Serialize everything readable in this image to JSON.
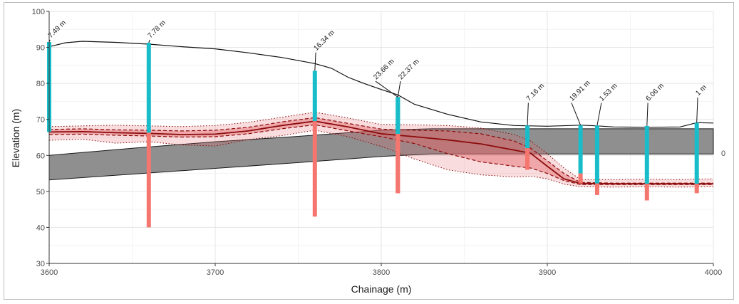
{
  "chart_data": {
    "type": "line",
    "xlabel": "Chainage (m)",
    "ylabel": "Elevation (m)",
    "xlim": [
      3600,
      4000
    ],
    "ylim": [
      30,
      100
    ],
    "xticks": [
      3600,
      3700,
      3800,
      3900,
      4000
    ],
    "yticks": [
      30,
      40,
      50,
      60,
      70,
      80,
      90,
      100
    ],
    "grid": true,
    "edge_label": "0",
    "ground_surface": {
      "x": [
        3600,
        3610,
        3620,
        3640,
        3660,
        3680,
        3700,
        3720,
        3740,
        3760,
        3770,
        3780,
        3790,
        3800,
        3810,
        3820,
        3840,
        3860,
        3880,
        3900,
        3920,
        3930,
        3940,
        3960,
        3980,
        3990,
        4000
      ],
      "y": [
        90.2,
        91.3,
        91.7,
        91.4,
        90.9,
        90.2,
        89.6,
        88.5,
        87.2,
        85.5,
        84.2,
        81.7,
        79.9,
        78.3,
        76.8,
        74.2,
        71.4,
        69.3,
        68.3,
        68.1,
        68.4,
        68.2,
        67.9,
        67.8,
        67.9,
        69.1,
        69.0
      ]
    },
    "grey_band": {
      "x": [
        3600,
        3650,
        3700,
        3750,
        3800,
        3830,
        4000
      ],
      "top": [
        60.0,
        62.0,
        63.8,
        65.3,
        67.0,
        67.4,
        67.4
      ],
      "bottom": [
        53.2,
        54.8,
        56.4,
        58.0,
        59.7,
        60.4,
        60.4
      ]
    },
    "series": [
      {
        "x": [
          3600,
          3620,
          3640,
          3660,
          3680,
          3700,
          3720,
          3740,
          3760,
          3780,
          3800,
          3820,
          3840,
          3860,
          3880,
          3890,
          3900,
          3910,
          3920,
          3940,
          3960,
          3980,
          4000
        ],
        "y": [
          66.5,
          66.6,
          66.3,
          66.1,
          65.8,
          65.9,
          66.8,
          68.3,
          69.5,
          67.9,
          66.0,
          65.2,
          64.3,
          63.2,
          61.5,
          60.6,
          57.0,
          53.5,
          52.2,
          52.1,
          52.1,
          52.1,
          52.1
        ]
      },
      {
        "x": [
          3600,
          3620,
          3640,
          3660,
          3680,
          3700,
          3720,
          3740,
          3760,
          3780,
          3800,
          3820,
          3840,
          3860,
          3880,
          3890,
          3900,
          3910,
          3920,
          3940,
          3960,
          3980,
          4000
        ],
        "y": [
          67.2,
          67.4,
          67.1,
          67.0,
          66.8,
          67.0,
          67.8,
          69.3,
          70.5,
          68.9,
          67.3,
          67.0,
          66.8,
          66.0,
          64.0,
          62.0,
          58.5,
          55.0,
          52.5,
          52.3,
          52.3,
          52.3,
          52.3
        ]
      },
      {
        "x": [
          3600,
          3620,
          3640,
          3660,
          3680,
          3700,
          3720,
          3740,
          3760,
          3780,
          3800,
          3820,
          3840,
          3860,
          3880,
          3890,
          3900,
          3910,
          3920,
          3940,
          3960,
          3980,
          4000
        ],
        "y": [
          65.8,
          65.9,
          65.6,
          65.4,
          65.1,
          65.2,
          66.0,
          67.4,
          68.5,
          66.8,
          65.2,
          63.3,
          60.5,
          58.2,
          57.0,
          56.5,
          55.0,
          53.0,
          51.9,
          51.9,
          51.9,
          51.9,
          51.9
        ]
      },
      {
        "x": [
          3600,
          3620,
          3640,
          3660,
          3680,
          3700,
          3720,
          3740,
          3760,
          3780,
          3800,
          3820,
          3840,
          3860,
          3880,
          3890,
          3900,
          3910,
          3920,
          3940,
          3960,
          3980,
          4000
        ],
        "y": [
          68.0,
          68.2,
          68.4,
          68.2,
          68.0,
          68.3,
          69.2,
          70.6,
          72.0,
          70.4,
          68.6,
          68.5,
          68.3,
          67.6,
          65.8,
          64.0,
          60.5,
          56.5,
          53.3,
          53.3,
          53.4,
          53.3,
          53.5
        ]
      },
      {
        "x": [
          3600,
          3620,
          3640,
          3660,
          3680,
          3700,
          3720,
          3740,
          3760,
          3780,
          3800,
          3820,
          3840,
          3860,
          3880,
          3890,
          3900,
          3910,
          3920,
          3940,
          3960,
          3980,
          4000
        ],
        "y": [
          64.2,
          64.5,
          63.4,
          63.8,
          62.9,
          62.6,
          64.4,
          65.5,
          67.0,
          65.2,
          62.5,
          59.0,
          56.0,
          54.6,
          54.0,
          54.2,
          53.5,
          52.0,
          51.3,
          51.2,
          51.3,
          51.2,
          51.3
        ]
      }
    ],
    "borehole_labels": [
      "7.49 m",
      "7.78 m",
      "16.34 m",
      "23.66 m",
      "22.37 m",
      "7.16 m",
      "19.91 m",
      "1.53 m",
      "6.06 m",
      "1 m"
    ],
    "boreholes": [
      {
        "x": 3600,
        "top": 91.5,
        "interface": 66.5,
        "bottom": 66.5,
        "label_x": 3601,
        "label_y": 92.5
      },
      {
        "x": 3660,
        "top": 91.3,
        "interface": 66.3,
        "bottom": 40.0,
        "label_x": 3661,
        "label_y": 92.5
      },
      {
        "x": 3760,
        "top": 83.5,
        "interface": 69.5,
        "bottom": 43.0,
        "label_x": 3761,
        "label_y": 89.0
      },
      {
        "x": 3810,
        "top": 76.2,
        "interface": 66.0,
        "bottom": 49.5,
        "label_x": 3797,
        "label_y": 81.0
      },
      {
        "x": 3810,
        "top": 76.2,
        "interface": 66.0,
        "bottom": 49.5,
        "label_x": 3812,
        "label_y": 81.0
      },
      {
        "x": 3888,
        "top": 68.3,
        "interface": 62.0,
        "bottom": 56.0,
        "label_x": 3889,
        "label_y": 75.0
      },
      {
        "x": 3920,
        "top": 68.4,
        "interface": 55.0,
        "bottom": 52.2,
        "label_x": 3915,
        "label_y": 75.0
      },
      {
        "x": 3930,
        "top": 68.3,
        "interface": 52.2,
        "bottom": 49.0,
        "label_x": 3933,
        "label_y": 75.0
      },
      {
        "x": 3960,
        "top": 68.2,
        "interface": 52.1,
        "bottom": 47.5,
        "label_x": 3961,
        "label_y": 75.0
      },
      {
        "x": 3990,
        "top": 69.1,
        "interface": 52.1,
        "bottom": 49.5,
        "label_x": 3991,
        "label_y": 76.5
      }
    ],
    "colors": {
      "ground_line": "#111111",
      "grey_band": "#8f8f8f",
      "borehole_upper": "#19bdc9",
      "borehole_lower": "#f4766e",
      "profile_line": "#8b0b0b",
      "profile_band": "#e3656a",
      "grid_major": "#e5e5e5",
      "grid_minor": "#f3f3f3"
    }
  }
}
